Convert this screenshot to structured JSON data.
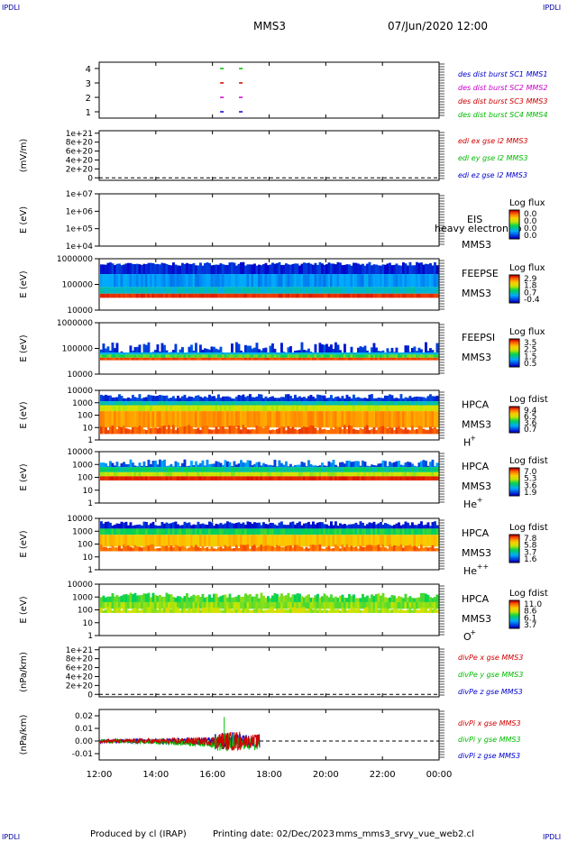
{
  "corner_label": "IPDLI",
  "header": {
    "mission": "MMS3",
    "datetime": "07/Jun/2020 12:00"
  },
  "footer": {
    "producer": "Produced by cl (IRAP)",
    "printing": "Printing date: 02/Dec/2023",
    "file": "mms_mms3_srvy_vue_web2.cl"
  },
  "x_axis": {
    "ticks": [
      "12:00",
      "14:00",
      "16:00",
      "18:00",
      "20:00",
      "22:00",
      "00:00"
    ]
  },
  "colors": {
    "blue": "#0000cc",
    "magenta": "#cc00cc",
    "red": "#d00000",
    "green": "#00bb00",
    "accent": "#0000aa"
  },
  "chart_data": [
    {
      "type": "scatter",
      "title": "des dist burst availability",
      "xlabel": "",
      "ylabel": "",
      "yticks": [
        "4",
        "3",
        "2",
        "1"
      ],
      "ylim": [
        0.5,
        4.5
      ],
      "series": [
        {
          "name": "des dist burst SC1 MMS1",
          "color": "#0000cc",
          "y": 1,
          "x": [
            "16:20",
            "17:00"
          ]
        },
        {
          "name": "des dist burst SC2 MMS2",
          "color": "#cc00cc",
          "y": 2,
          "x": [
            "16:20",
            "17:00"
          ]
        },
        {
          "name": "des dist burst SC3 MMS3",
          "color": "#d00000",
          "y": 3,
          "x": [
            "16:20",
            "17:00"
          ]
        },
        {
          "name": "des dist burst SC4 MMS4",
          "color": "#00bb00",
          "y": 4,
          "x": [
            "16:20",
            "17:00"
          ]
        }
      ]
    },
    {
      "type": "line",
      "ylabel": "(mV/m)",
      "yticks": [
        "1e+21",
        "8e+20",
        "6e+20",
        "4e+20",
        "2e+20",
        "0"
      ],
      "ylim": [
        0,
        1e+21
      ],
      "series": [
        {
          "name": "edi ex gse l2 MMS3",
          "color": "#d00000"
        },
        {
          "name": "edi ey gse l2 MMS3",
          "color": "#00bb00"
        },
        {
          "name": "edi ez gse l2 MMS3",
          "color": "#0000cc"
        }
      ]
    },
    {
      "type": "heatmap",
      "ylabel": "E (eV)",
      "yticks": [
        "1e+07",
        "1e+06",
        "1e+05",
        "1e+04"
      ],
      "ylim": [
        10000.0,
        10000000.0
      ],
      "labels": [
        "EIS",
        "MMS3"
      ],
      "overlay_text": "heavy electron to",
      "colorbar": {
        "title": "Log flux",
        "ticks": [
          "0.0",
          "0.0",
          "0.0",
          "0.0"
        ]
      }
    },
    {
      "type": "heatmap",
      "ylabel": "E (eV)",
      "yticks": [
        "1000000",
        "100000",
        "10000"
      ],
      "ylim": [
        10000,
        1000000
      ],
      "labels": [
        "FEEPSE",
        "MMS3"
      ],
      "colorbar": {
        "title": "Log flux",
        "ticks": [
          "2.9",
          "1.8",
          "0.7",
          "-0.4"
        ]
      }
    },
    {
      "type": "heatmap",
      "ylabel": "E (eV)",
      "yticks": [
        "1000000",
        "100000",
        "10000"
      ],
      "ylim": [
        10000,
        1000000
      ],
      "labels": [
        "FEEPSI",
        "MMS3"
      ],
      "colorbar": {
        "title": "Log flux",
        "ticks": [
          "3.5",
          "2.5",
          "1.5",
          "0.5"
        ]
      }
    },
    {
      "type": "heatmap",
      "ylabel": "E (eV)",
      "yticks": [
        "10000",
        "1000",
        "100",
        "10",
        "1"
      ],
      "ylim": [
        1,
        30000
      ],
      "labels": [
        "HPCA",
        "MMS3",
        "H",
        "+"
      ],
      "colorbar": {
        "title": "Log fdist",
        "ticks": [
          "9.4",
          "6.5",
          "3.6",
          "0.7"
        ]
      }
    },
    {
      "type": "heatmap",
      "ylabel": "E (eV)",
      "yticks": [
        "10000",
        "1000",
        "100",
        "10",
        "1"
      ],
      "ylim": [
        1,
        30000
      ],
      "labels": [
        "HPCA",
        "MMS3",
        "He",
        "+"
      ],
      "colorbar": {
        "title": "Log fdist",
        "ticks": [
          "7.0",
          "5.3",
          "3.6",
          "1.9"
        ]
      }
    },
    {
      "type": "heatmap",
      "ylabel": "E (eV)",
      "yticks": [
        "10000",
        "1000",
        "100",
        "10",
        "1"
      ],
      "ylim": [
        1,
        30000
      ],
      "labels": [
        "HPCA",
        "MMS3",
        "He",
        "++"
      ],
      "colorbar": {
        "title": "Log fdist",
        "ticks": [
          "7.8",
          "5.8",
          "3.7",
          "1.6"
        ]
      }
    },
    {
      "type": "heatmap",
      "ylabel": "E (eV)",
      "yticks": [
        "10000",
        "1000",
        "100",
        "10",
        "1"
      ],
      "ylim": [
        1,
        30000
      ],
      "labels": [
        "HPCA",
        "MMS3",
        "O",
        "+"
      ],
      "colorbar": {
        "title": "Log fdist",
        "ticks": [
          "11.0",
          "8.6",
          "6.1",
          "3.7"
        ]
      }
    },
    {
      "type": "line",
      "ylabel": "(nPa/km)",
      "yticks": [
        "1e+21",
        "8e+20",
        "6e+20",
        "4e+20",
        "2e+20",
        "0"
      ],
      "ylim": [
        0,
        1e+21
      ],
      "series": [
        {
          "name": "divPe x gse MMS3",
          "color": "#d00000"
        },
        {
          "name": "divPe y gse MMS3",
          "color": "#00bb00"
        },
        {
          "name": "divPe z gse MMS3",
          "color": "#0000cc"
        }
      ]
    },
    {
      "type": "line",
      "ylabel": "(nPa/km)",
      "yticks": [
        "0.02",
        "0.01",
        "0.00",
        "-0.01"
      ],
      "ylim": [
        -0.015,
        0.025
      ],
      "series": [
        {
          "name": "divPi x gse MMS3",
          "color": "#d00000"
        },
        {
          "name": "divPi y gse MMS3",
          "color": "#00bb00"
        },
        {
          "name": "divPi z gse MMS3",
          "color": "#0000cc"
        }
      ]
    }
  ]
}
